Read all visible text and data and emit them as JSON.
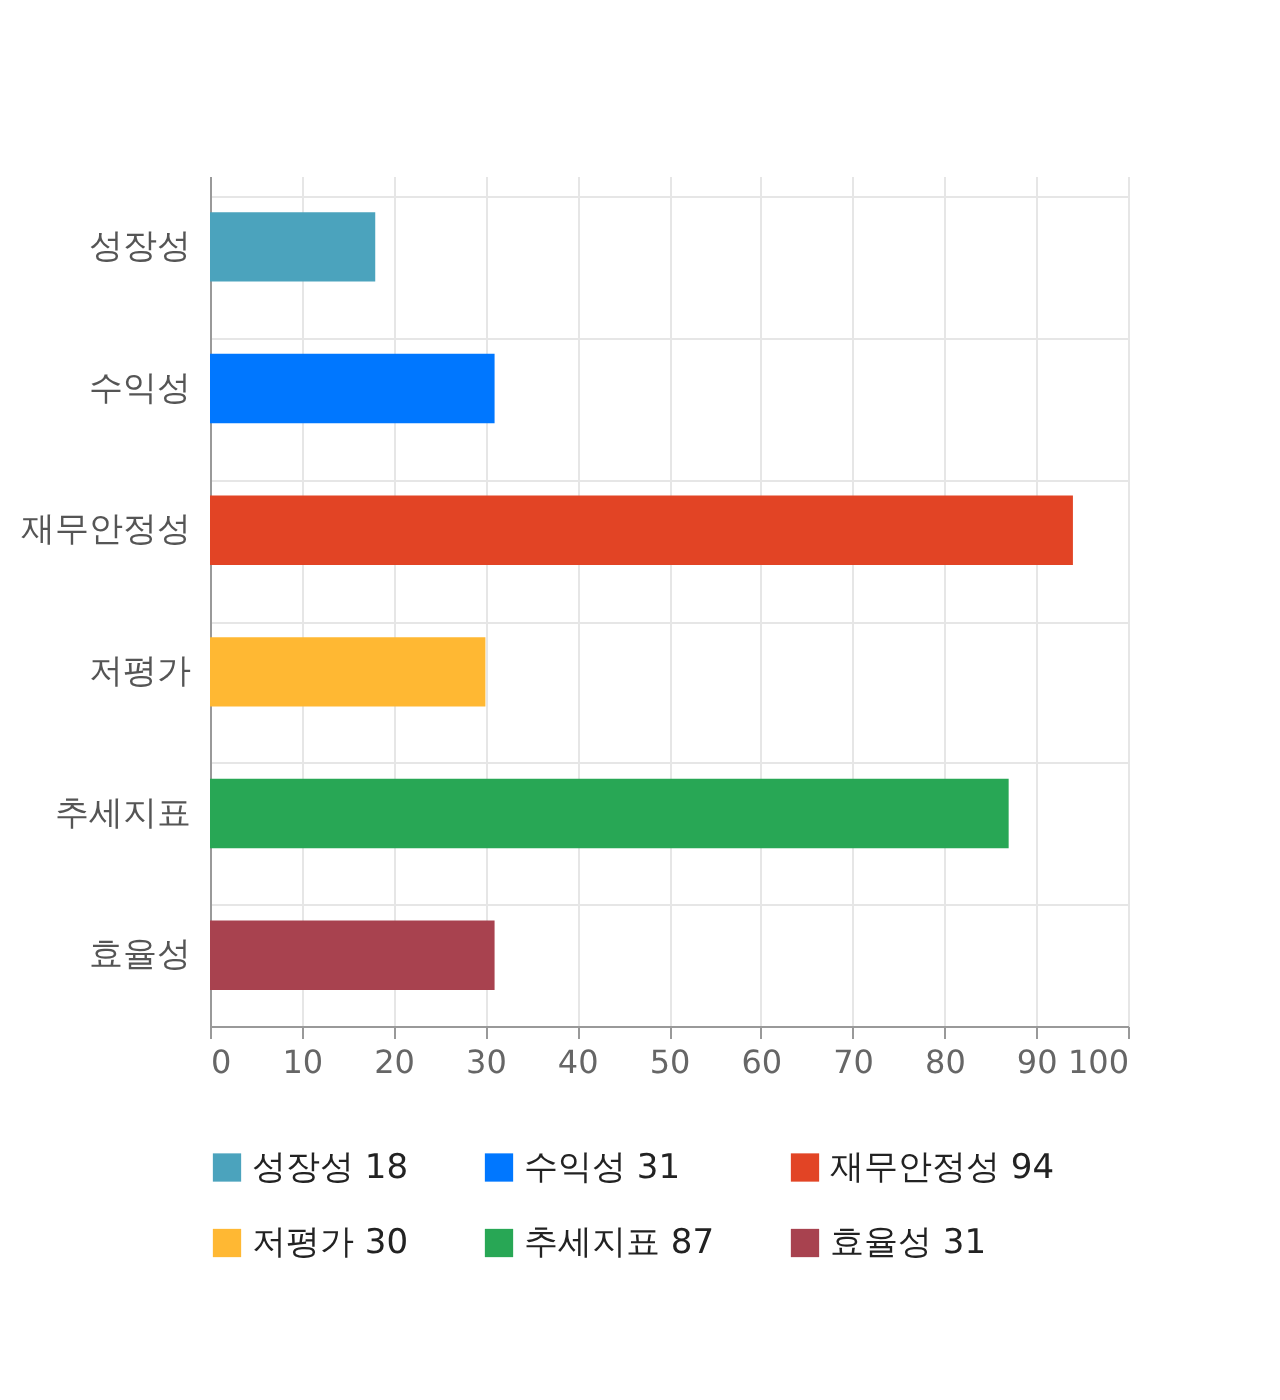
{
  "chart_data": {
    "type": "bar",
    "orientation": "horizontal",
    "categories": [
      "성장성",
      "수익성",
      "재무안정성",
      "저평가",
      "추세지표",
      "효율성"
    ],
    "series": [
      {
        "name": "성장성 18",
        "color": "#4ba3bd",
        "values": [
          18,
          null,
          null,
          null,
          null,
          null
        ]
      },
      {
        "name": "수익성 31",
        "color": "#0077ff",
        "values": [
          null,
          31,
          null,
          null,
          null,
          null
        ]
      },
      {
        "name": "재무안정성 94",
        "color": "#e24425",
        "values": [
          null,
          null,
          94,
          null,
          null,
          null
        ]
      },
      {
        "name": "저평가 30",
        "color": "#ffb833",
        "values": [
          null,
          null,
          null,
          30,
          null,
          null
        ]
      },
      {
        "name": "추세지표 87",
        "color": "#28a755",
        "values": [
          null,
          null,
          null,
          null,
          87,
          null
        ]
      },
      {
        "name": "효율성 31",
        "color": "#a8424f",
        "values": [
          null,
          null,
          null,
          null,
          null,
          31
        ]
      }
    ],
    "xlim": [
      0,
      100
    ],
    "xticks": [
      0,
      10,
      20,
      30,
      40,
      50,
      60,
      70,
      80,
      90,
      100
    ],
    "grid": true,
    "legend": "bottom"
  }
}
